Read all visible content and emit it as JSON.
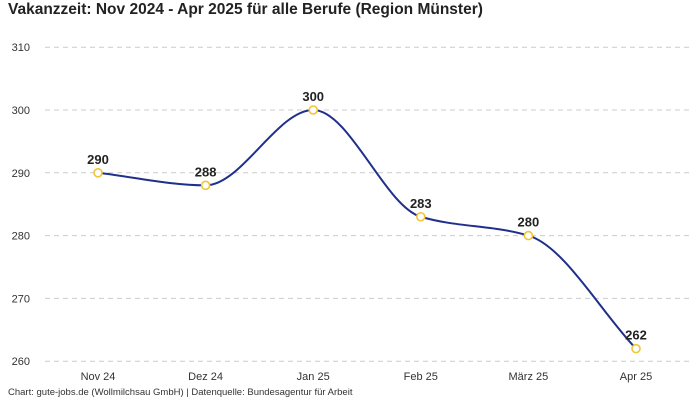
{
  "chart_data": {
    "type": "line",
    "title": "Vakanzzeit: Nov 2024 - Apr 2025 für alle Berufe (Region Münster)",
    "categories": [
      "Nov 24",
      "Dez 24",
      "Jan 25",
      "Feb 25",
      "März 25",
      "Apr 25"
    ],
    "series": [
      {
        "name": "Vakanzzeit",
        "values": [
          290,
          288,
          300,
          283,
          280,
          262
        ]
      }
    ],
    "ylim": [
      258,
      312
    ],
    "yticks": [
      260,
      270,
      280,
      290,
      300,
      310
    ],
    "grid": true,
    "xlabel": "",
    "ylabel": "",
    "colors": {
      "line": "#1f2f8c",
      "marker": "#f2c531",
      "grid": "#cccccc"
    }
  },
  "footer": "Chart: gute-jobs.de (Wollmilchsau GmbH) | Datenquelle: Bundesagentur für Arbeit"
}
